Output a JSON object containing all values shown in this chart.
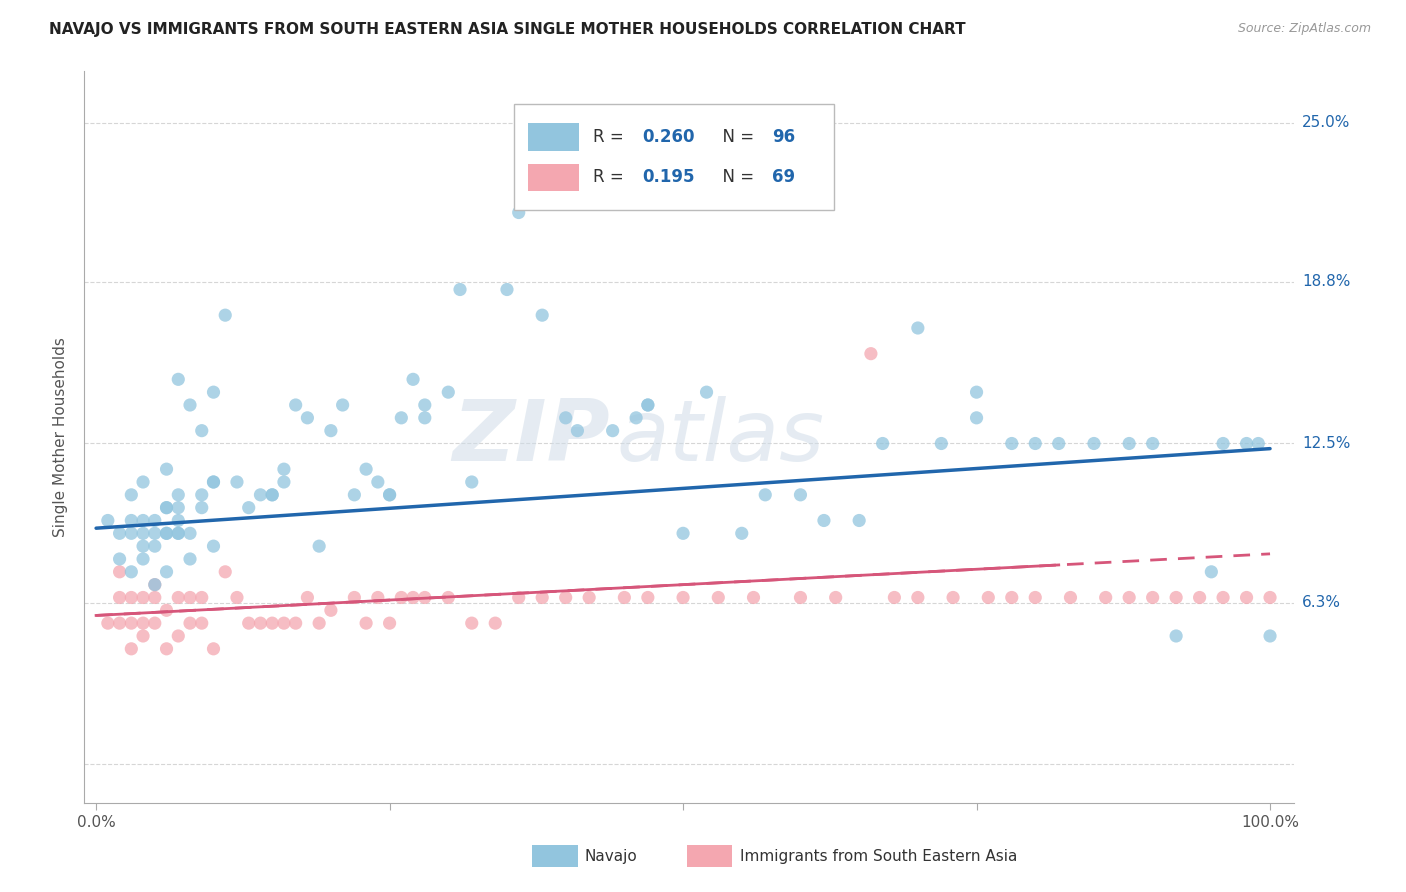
{
  "title": "NAVAJO VS IMMIGRANTS FROM SOUTH EASTERN ASIA SINGLE MOTHER HOUSEHOLDS CORRELATION CHART",
  "source": "Source: ZipAtlas.com",
  "ylabel": "Single Mother Households",
  "navajo_R": 0.26,
  "navajo_N": 96,
  "sea_R": 0.195,
  "sea_N": 69,
  "navajo_color": "#92c5de",
  "sea_color": "#f4a7b0",
  "trendline_navajo_color": "#2166ac",
  "trendline_sea_color": "#d6567a",
  "background_color": "#ffffff",
  "grid_color": "#cccccc",
  "watermark_zip": "ZIP",
  "watermark_atlas": "atlas",
  "legend_label_navajo": "Navajo",
  "legend_label_sea": "Immigrants from South Eastern Asia",
  "yticks": [
    0.0,
    6.3,
    12.5,
    18.8,
    25.0
  ],
  "ytick_labels_right": [
    "",
    "6.3%",
    "12.5%",
    "18.8%",
    "25.0%"
  ],
  "navajo_x": [
    1,
    2,
    2,
    3,
    3,
    3,
    3,
    4,
    4,
    4,
    4,
    4,
    5,
    5,
    5,
    5,
    6,
    6,
    6,
    6,
    6,
    6,
    7,
    7,
    7,
    7,
    7,
    7,
    8,
    8,
    8,
    9,
    9,
    9,
    10,
    10,
    10,
    10,
    11,
    12,
    13,
    14,
    15,
    15,
    16,
    16,
    17,
    18,
    19,
    20,
    21,
    22,
    23,
    24,
    25,
    25,
    26,
    27,
    28,
    28,
    30,
    31,
    32,
    35,
    36,
    38,
    40,
    41,
    44,
    46,
    47,
    47,
    50,
    52,
    55,
    57,
    60,
    62,
    65,
    67,
    70,
    72,
    75,
    75,
    78,
    80,
    82,
    85,
    88,
    90,
    92,
    95,
    96,
    98,
    99,
    100
  ],
  "navajo_y": [
    9.5,
    8.0,
    9.0,
    7.5,
    9.0,
    9.5,
    10.5,
    8.5,
    8.0,
    9.0,
    9.5,
    11.0,
    7.0,
    8.5,
    9.0,
    9.5,
    10.0,
    7.5,
    9.0,
    9.0,
    10.0,
    11.5,
    9.0,
    9.5,
    10.0,
    10.5,
    15.0,
    9.0,
    8.0,
    9.0,
    14.0,
    10.0,
    10.5,
    13.0,
    8.5,
    11.0,
    11.0,
    14.5,
    17.5,
    11.0,
    10.0,
    10.5,
    10.5,
    10.5,
    11.0,
    11.5,
    14.0,
    13.5,
    8.5,
    13.0,
    14.0,
    10.5,
    11.5,
    11.0,
    10.5,
    10.5,
    13.5,
    15.0,
    13.5,
    14.0,
    14.5,
    18.5,
    11.0,
    18.5,
    21.5,
    17.5,
    13.5,
    13.0,
    13.0,
    13.5,
    14.0,
    14.0,
    9.0,
    14.5,
    9.0,
    10.5,
    10.5,
    9.5,
    9.5,
    12.5,
    17.0,
    12.5,
    13.5,
    14.5,
    12.5,
    12.5,
    12.5,
    12.5,
    12.5,
    12.5,
    5.0,
    7.5,
    12.5,
    12.5,
    12.5,
    5.0
  ],
  "sea_x": [
    1,
    2,
    2,
    2,
    3,
    3,
    3,
    4,
    4,
    4,
    5,
    5,
    5,
    6,
    6,
    7,
    7,
    8,
    8,
    9,
    9,
    10,
    11,
    12,
    13,
    14,
    15,
    16,
    17,
    18,
    19,
    20,
    22,
    23,
    24,
    25,
    26,
    27,
    28,
    30,
    32,
    34,
    36,
    38,
    40,
    42,
    45,
    47,
    50,
    53,
    56,
    60,
    63,
    66,
    68,
    70,
    73,
    76,
    78,
    80,
    83,
    86,
    88,
    90,
    92,
    94,
    96,
    98,
    100
  ],
  "sea_y": [
    5.5,
    5.5,
    6.5,
    7.5,
    4.5,
    5.5,
    6.5,
    5.0,
    5.5,
    6.5,
    5.5,
    6.5,
    7.0,
    4.5,
    6.0,
    5.0,
    6.5,
    5.5,
    6.5,
    5.5,
    6.5,
    4.5,
    7.5,
    6.5,
    5.5,
    5.5,
    5.5,
    5.5,
    5.5,
    6.5,
    5.5,
    6.0,
    6.5,
    5.5,
    6.5,
    5.5,
    6.5,
    6.5,
    6.5,
    6.5,
    5.5,
    5.5,
    6.5,
    6.5,
    6.5,
    6.5,
    6.5,
    6.5,
    6.5,
    6.5,
    6.5,
    6.5,
    6.5,
    16.0,
    6.5,
    6.5,
    6.5,
    6.5,
    6.5,
    6.5,
    6.5,
    6.5,
    6.5,
    6.5,
    6.5,
    6.5,
    6.5,
    6.5,
    6.5
  ],
  "navajo_trend": [
    9.2,
    12.3
  ],
  "sea_trend": [
    5.8,
    8.2
  ],
  "xlim": [
    -1,
    102
  ],
  "ylim": [
    -1.5,
    27
  ]
}
